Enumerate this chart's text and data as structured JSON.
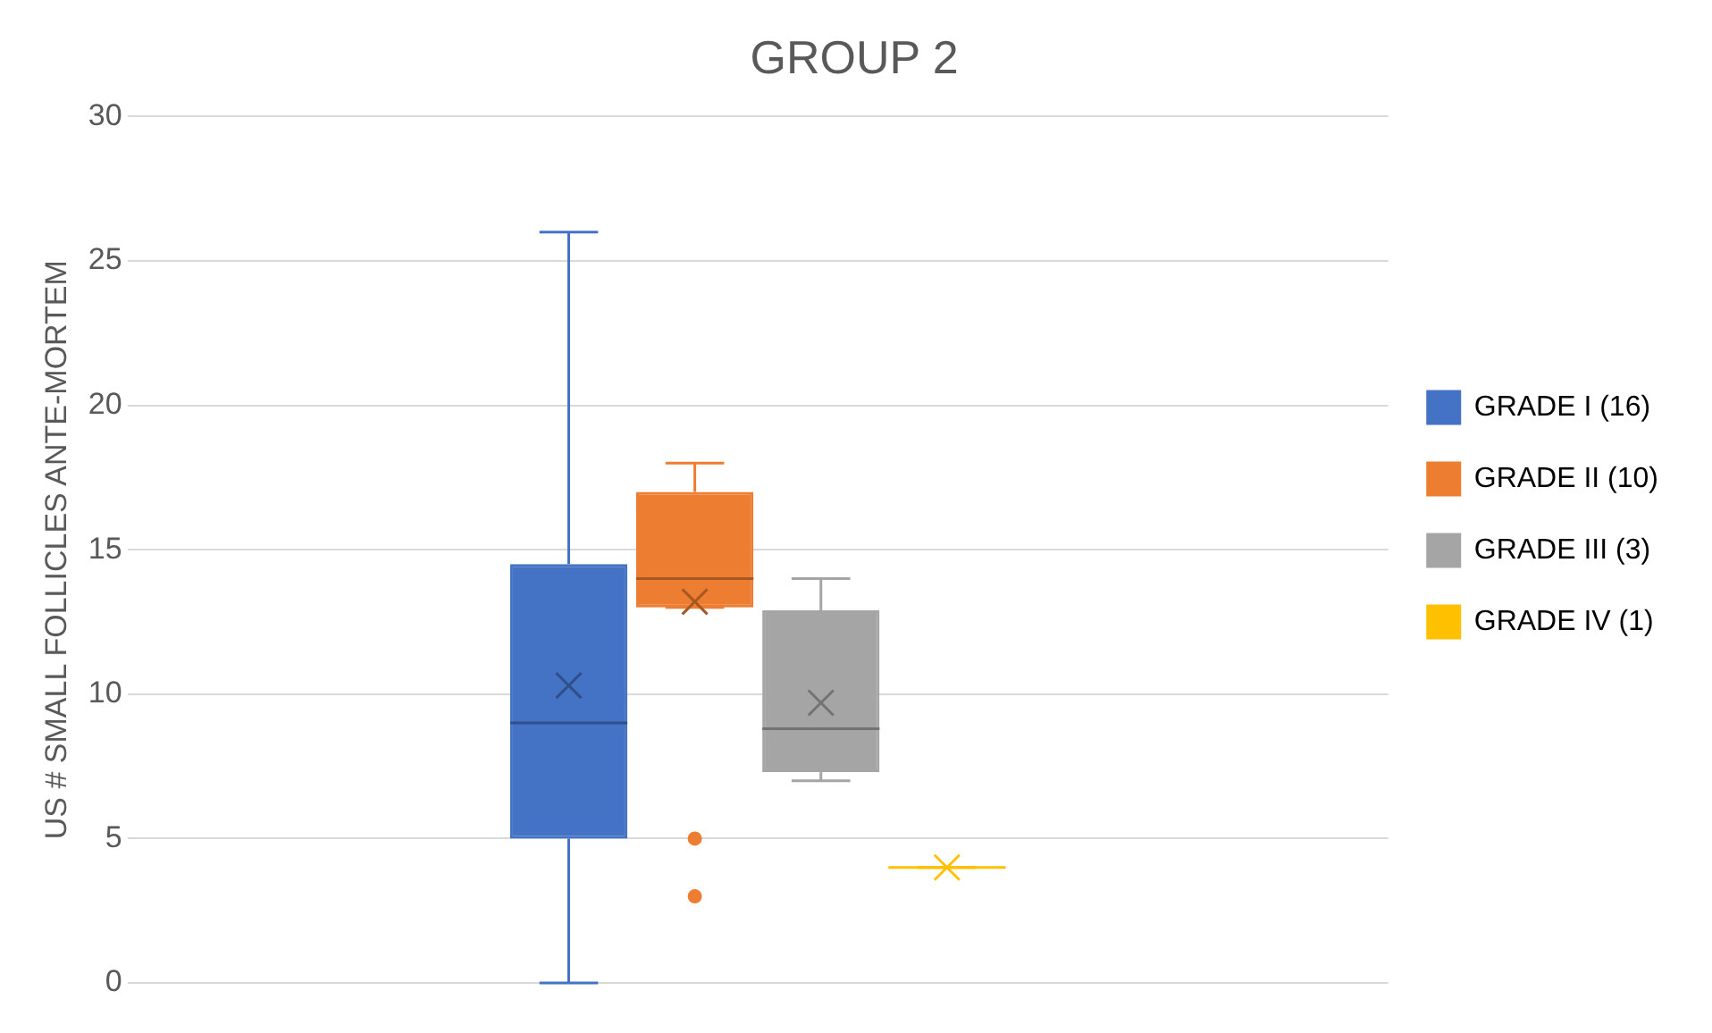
{
  "chart_data": {
    "type": "box",
    "title": "GROUP 2",
    "ylabel": "US # SMALL FOLLICLES ANTE-MORTEM",
    "categories": [
      null
    ],
    "series": [
      {
        "name": "GRADE I (16)",
        "color": "#4472c4",
        "boxes": [
          {
            "low": 0,
            "q1": 5,
            "median": 9,
            "q3": 14.5,
            "high": 26,
            "mean": 10.3
          }
        ]
      },
      {
        "name": "GRADE II (10)",
        "color": "#ed7d31",
        "boxes": [
          {
            "low": 13,
            "q1": 13,
            "median": 14,
            "q3": 17,
            "high": 18,
            "mean": 13.2,
            "outliers": [
              5,
              3
            ]
          }
        ]
      },
      {
        "name": "GRADE III (3)",
        "color": "#a5a5a5",
        "boxes": [
          {
            "low": 7,
            "q1": 7.3,
            "median": 8.8,
            "q3": 12.9,
            "high": 14,
            "mean": 9.7
          }
        ]
      },
      {
        "name": "GRADE IV (1)",
        "color": "#ffc000",
        "boxes": [
          {
            "low": 4,
            "q1": 4,
            "median": 4,
            "q3": 4,
            "high": 4,
            "mean": 4
          }
        ]
      }
    ],
    "ylim": [
      0,
      30
    ],
    "yticks": [
      0,
      5,
      10,
      15,
      20,
      25,
      30
    ],
    "grid": "y",
    "legend": "right"
  }
}
